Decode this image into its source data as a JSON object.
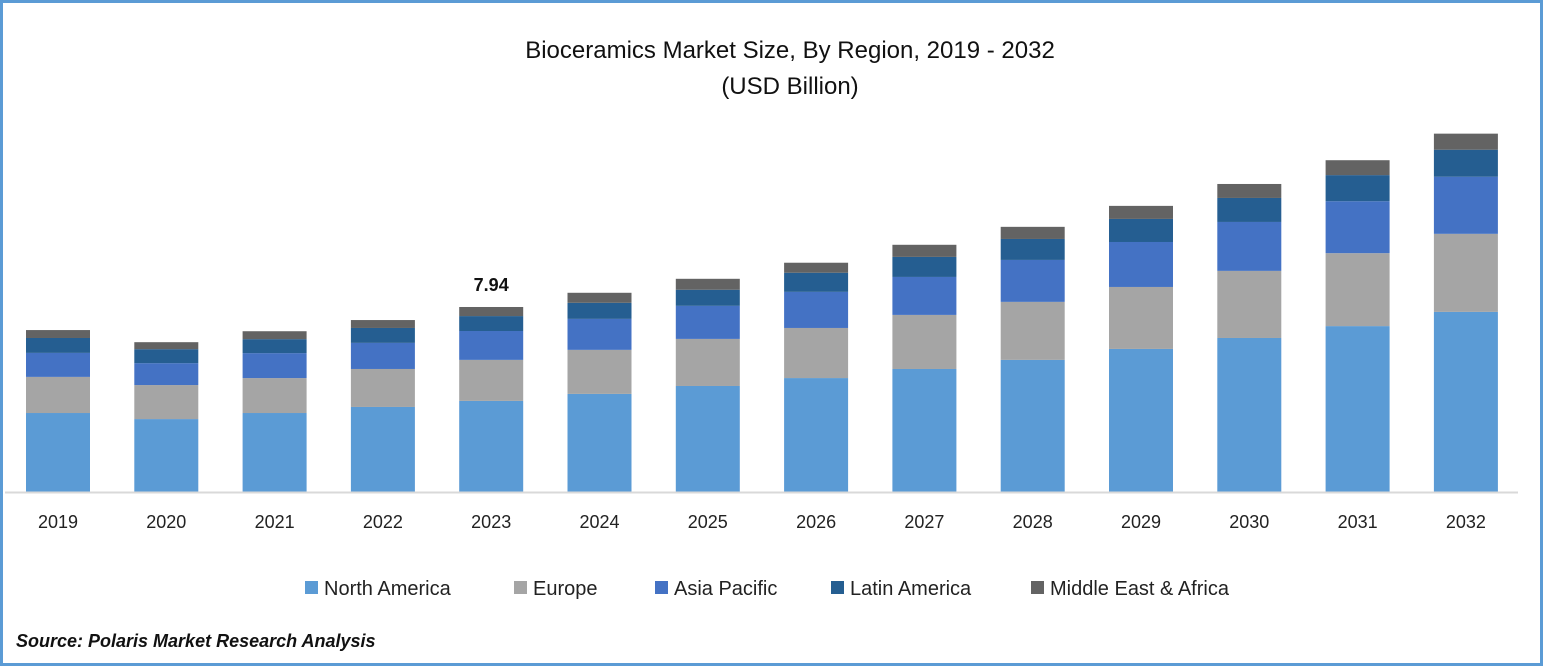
{
  "chart_data": {
    "type": "bar",
    "stacked": true,
    "title": "Bioceramics Market Size, By Region, 2019 - 2032",
    "subtitle": "(USD Billion)",
    "xlabel": "",
    "ylabel": "",
    "ylim": [
      0,
      16
    ],
    "grid": false,
    "legend_position": "bottom",
    "categories": [
      "2019",
      "2020",
      "2021",
      "2022",
      "2023",
      "2024",
      "2025",
      "2026",
      "2027",
      "2028",
      "2029",
      "2030",
      "2031",
      "2032"
    ],
    "series": [
      {
        "name": "North America",
        "color": "#5b9bd5",
        "values": [
          3.39,
          3.13,
          3.39,
          3.65,
          3.91,
          4.21,
          4.55,
          4.89,
          5.28,
          5.67,
          6.14,
          6.61,
          7.12,
          7.73
        ]
      },
      {
        "name": "Europe",
        "color": "#a5a5a5",
        "values": [
          1.55,
          1.46,
          1.5,
          1.63,
          1.76,
          1.89,
          2.02,
          2.15,
          2.32,
          2.49,
          2.66,
          2.88,
          3.13,
          3.35
        ]
      },
      {
        "name": "Asia Pacific",
        "color": "#4472c4",
        "values": [
          1.03,
          0.94,
          1.07,
          1.12,
          1.24,
          1.33,
          1.42,
          1.55,
          1.63,
          1.8,
          1.93,
          2.1,
          2.23,
          2.45
        ]
      },
      {
        "name": "Latin America",
        "color": "#255e91",
        "values": [
          0.64,
          0.6,
          0.6,
          0.64,
          0.64,
          0.69,
          0.69,
          0.82,
          0.86,
          0.9,
          0.99,
          1.03,
          1.12,
          1.16
        ]
      },
      {
        "name": "Middle East & Africa",
        "color": "#636363",
        "values": [
          0.34,
          0.3,
          0.34,
          0.34,
          0.39,
          0.43,
          0.47,
          0.43,
          0.52,
          0.52,
          0.56,
          0.6,
          0.64,
          0.69
        ]
      }
    ],
    "annotations": [
      {
        "category": "2023",
        "text": "7.94"
      }
    ]
  },
  "source": "Source: Polaris Market Research Analysis"
}
